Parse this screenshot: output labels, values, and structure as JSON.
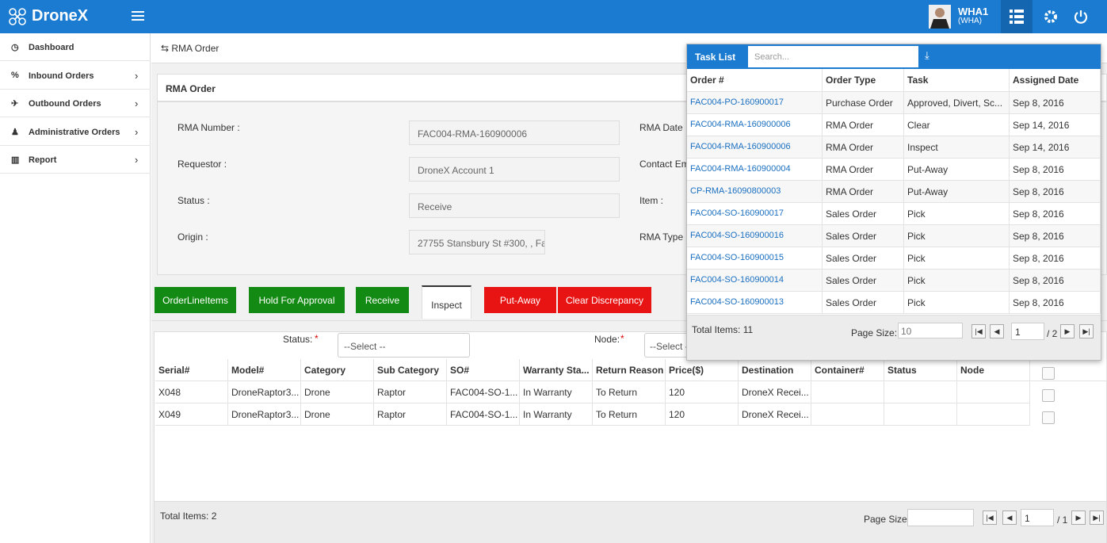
{
  "header": {
    "brand": "DroneX",
    "user": "WHA1",
    "user_group": "(WHA)"
  },
  "sidebar": {
    "items": [
      "Dashboard",
      "Inbound Orders",
      "Outbound Orders",
      "Administrative Orders",
      "Report"
    ]
  },
  "breadcrumb": "RMA Order",
  "panel": {
    "title": "RMA Order",
    "left_fields": [
      {
        "label": "RMA Number :",
        "value": "FAC004-RMA-160900006"
      },
      {
        "label": "Requestor :",
        "value": "DroneX Account 1"
      },
      {
        "label": "Status :",
        "value": "Receive"
      },
      {
        "label": "Origin :",
        "value": "27755 Stansbury St #300, , Fa"
      }
    ],
    "right_labels": [
      "RMA Date :",
      "Contact Em",
      "Item :",
      "RMA Type :"
    ]
  },
  "tabs": [
    "OrderLineItems",
    "Hold For Approval",
    "Receive",
    "Inspect",
    "Put-Away",
    "Clear Discrepancy"
  ],
  "filters": {
    "status_label": "Status:",
    "node_label": "Node:",
    "required": "*",
    "status_select": "--Select --",
    "node_select": "--Select -"
  },
  "grid": {
    "columns": [
      "Serial#",
      "Model#",
      "Category",
      "Sub Category",
      "SO#",
      "Warranty Sta...",
      "Return Reason",
      "Price($)",
      "Destination",
      "Container#",
      "Status",
      "Node"
    ],
    "rows": [
      [
        "X048",
        "DroneRaptor3...",
        "Drone",
        "Raptor",
        "FAC004-SO-1...",
        "In Warranty",
        "To Return",
        "120",
        "DroneX Recei..."
      ],
      [
        "X049",
        "DroneRaptor3...",
        "Drone",
        "Raptor",
        "FAC004-SO-1...",
        "In Warranty",
        "To Return",
        "120",
        "DroneX Recei..."
      ]
    ],
    "total": "Total Items: 2",
    "page_size_label": "Page Size:",
    "page": "1",
    "pages": "/ 1"
  },
  "task_list": {
    "title": "Task List",
    "search_placeholder": "Search...",
    "columns": [
      "Order #",
      "Order Type",
      "Task",
      "Assigned Date"
    ],
    "rows": [
      [
        "FAC004-PO-160900017",
        "Purchase Order",
        "Approved, Divert, Sc...",
        "Sep 8, 2016"
      ],
      [
        "FAC004-RMA-160900006",
        "RMA Order",
        "Clear",
        "Sep 14, 2016"
      ],
      [
        "FAC004-RMA-160900006",
        "RMA Order",
        "Inspect",
        "Sep 14, 2016"
      ],
      [
        "FAC004-RMA-160900004",
        "RMA Order",
        "Put-Away",
        "Sep 8, 2016"
      ],
      [
        "CP-RMA-16090800003",
        "RMA Order",
        "Put-Away",
        "Sep 8, 2016"
      ],
      [
        "FAC004-SO-160900017",
        "Sales Order",
        "Pick",
        "Sep 8, 2016"
      ],
      [
        "FAC004-SO-160900016",
        "Sales Order",
        "Pick",
        "Sep 8, 2016"
      ],
      [
        "FAC004-SO-160900015",
        "Sales Order",
        "Pick",
        "Sep 8, 2016"
      ],
      [
        "FAC004-SO-160900014",
        "Sales Order",
        "Pick",
        "Sep 8, 2016"
      ],
      [
        "FAC004-SO-160900013",
        "Sales Order",
        "Pick",
        "Sep 8, 2016"
      ]
    ],
    "total": "Total Items: 11",
    "page_size_label": "Page Size:",
    "page_size": "10",
    "page": "1",
    "pages": "/ 2"
  }
}
